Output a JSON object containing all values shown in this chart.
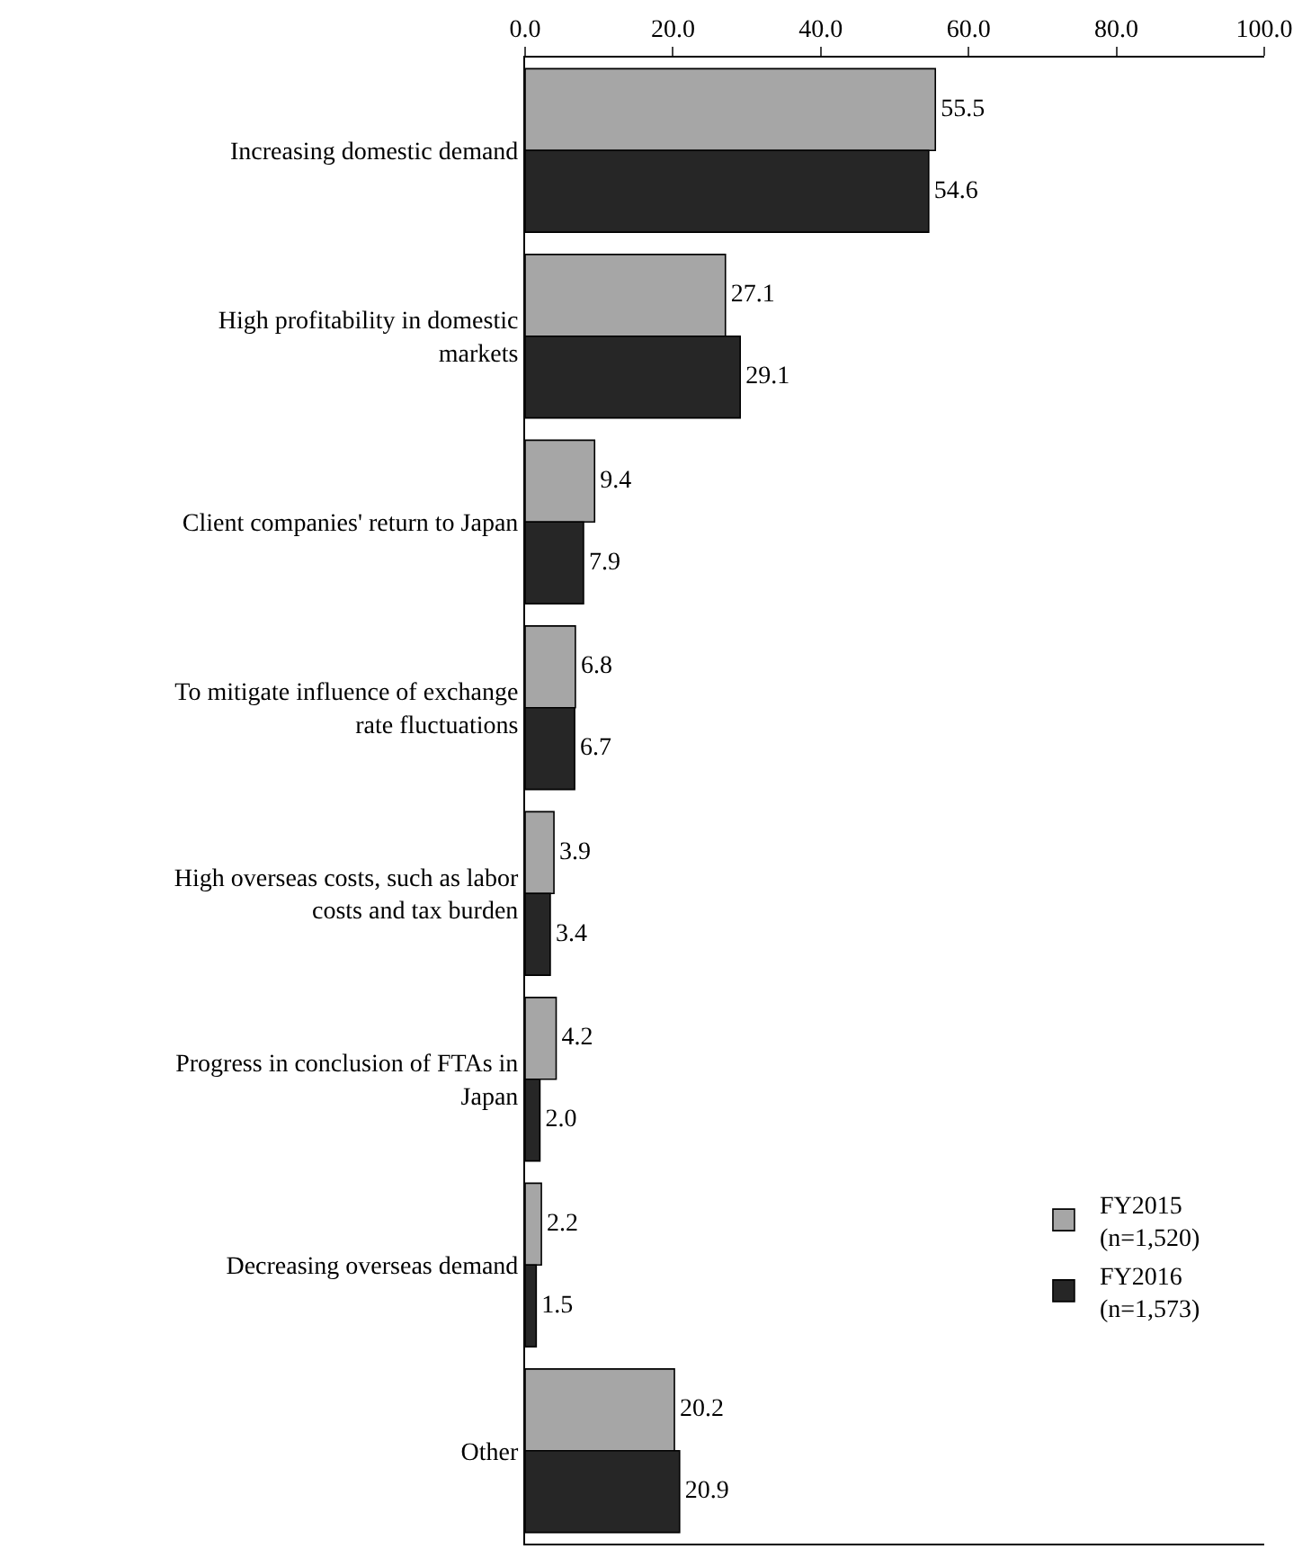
{
  "chart_data": {
    "type": "bar",
    "orientation": "horizontal",
    "categories": [
      "Increasing domestic demand",
      "High profitability in domestic markets",
      "Client companies' return to Japan",
      "To mitigate influence of exchange rate fluctuations",
      "High overseas costs, such as labor costs and tax burden",
      "Progress in conclusion of FTAs in Japan",
      "Decreasing overseas demand",
      "Other"
    ],
    "series": [
      {
        "name": "FY2015 (n=1,520)",
        "color": "#a6a6a6",
        "values": [
          55.5,
          27.1,
          9.4,
          6.8,
          3.9,
          4.2,
          2.2,
          20.2
        ],
        "value_labels": [
          "55.5",
          "27.1",
          "9.4",
          "6.8",
          "3.9",
          "4.2",
          "2.2",
          "20.2"
        ]
      },
      {
        "name": "FY2016 (n=1,573)",
        "color": "#262626",
        "values": [
          54.6,
          29.1,
          7.9,
          6.7,
          3.4,
          2.0,
          1.5,
          20.9
        ],
        "value_labels": [
          "54.6",
          "29.1",
          "7.9",
          "6.7",
          "3.4",
          "2.0",
          "1.5",
          "20.9"
        ]
      }
    ],
    "xlim": [
      0,
      100
    ],
    "xticks": [
      {
        "value": 0,
        "label": "0.0"
      },
      {
        "value": 20,
        "label": "20.0"
      },
      {
        "value": 40,
        "label": "40.0"
      },
      {
        "value": 60,
        "label": "60.0"
      },
      {
        "value": 80,
        "label": "80.0"
      },
      {
        "value": 100,
        "label": "100.0"
      }
    ],
    "grid": false,
    "legend": "bottom right"
  }
}
